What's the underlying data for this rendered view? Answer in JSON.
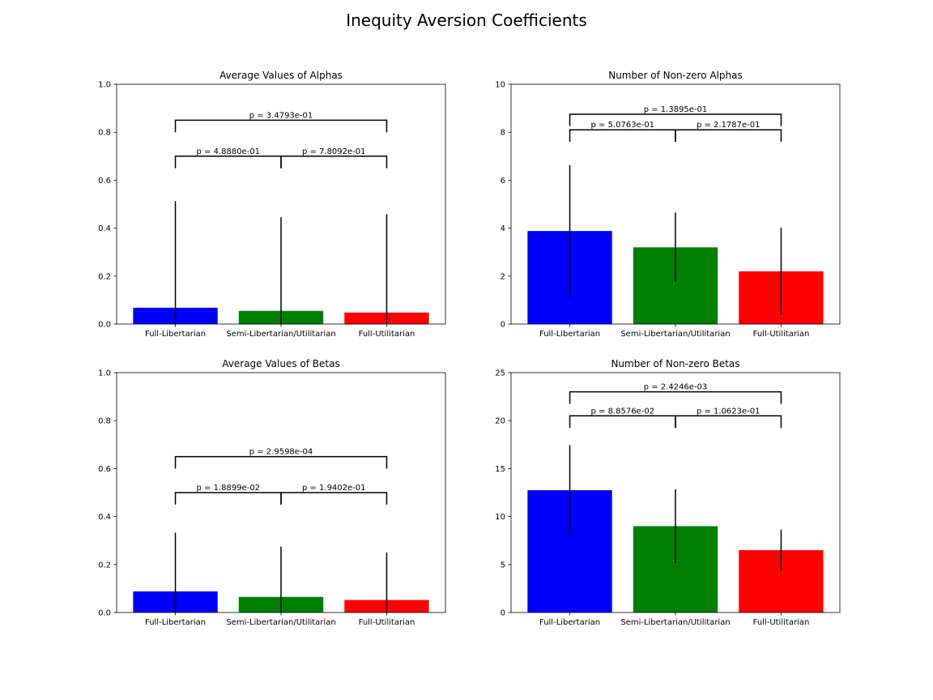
{
  "figure": {
    "title": "Inequity Aversion Coefficients"
  },
  "chart_data": [
    {
      "type": "bar",
      "title": "Average Values of Alphas",
      "xlabel": "",
      "ylabel": "",
      "categories": [
        "Full-Libertarian",
        "Semi-Libertarian/Utilitarian",
        "Full-Utilitarian"
      ],
      "values": [
        0.068,
        0.055,
        0.048
      ],
      "error": [
        0.445,
        0.39,
        0.41
      ],
      "colors": [
        "#0000ff",
        "#008000",
        "#ff0000"
      ],
      "ylim": [
        0,
        1.0
      ],
      "yticks": [
        0.0,
        0.2,
        0.4,
        0.6,
        0.8,
        1.0
      ],
      "ytick_labels": [
        "0.0",
        "0.2",
        "0.4",
        "0.6",
        "0.8",
        "1.0"
      ],
      "brackets": [
        {
          "from": 0,
          "to": 1,
          "y": 0.7,
          "drop": 0.05,
          "label": "p = 4.8880e-01"
        },
        {
          "from": 1,
          "to": 2,
          "y": 0.7,
          "drop": 0.05,
          "label": "p = 7.8092e-01"
        },
        {
          "from": 0,
          "to": 2,
          "y": 0.85,
          "drop": 0.05,
          "label": "p = 3.4793e-01"
        }
      ]
    },
    {
      "type": "bar",
      "title": "Number of Non-zero Alphas",
      "xlabel": "",
      "ylabel": "",
      "categories": [
        "Full-Libertarian",
        "Semi-Libertarian/Utilitarian",
        "Full-Utilitarian"
      ],
      "values": [
        3.88,
        3.2,
        2.2
      ],
      "error": [
        2.75,
        1.45,
        1.82
      ],
      "colors": [
        "#0000ff",
        "#008000",
        "#ff0000"
      ],
      "ylim": [
        0,
        10
      ],
      "yticks": [
        0,
        2,
        4,
        6,
        8,
        10
      ],
      "ytick_labels": [
        "0",
        "2",
        "4",
        "6",
        "8",
        "10"
      ],
      "brackets": [
        {
          "from": 0,
          "to": 1,
          "y": 8.1,
          "drop": 0.05,
          "label": "p = 5.0763e-01"
        },
        {
          "from": 1,
          "to": 2,
          "y": 8.1,
          "drop": 0.05,
          "label": "p = 2.1787e-01"
        },
        {
          "from": 0,
          "to": 2,
          "y": 8.75,
          "drop": 0.05,
          "label": "p = 1.3895e-01"
        }
      ]
    },
    {
      "type": "bar",
      "title": "Average Values of Betas",
      "xlabel": "",
      "ylabel": "",
      "categories": [
        "Full-Libertarian",
        "Semi-Libertarian/Utilitarian",
        "Full-Utilitarian"
      ],
      "values": [
        0.088,
        0.065,
        0.052
      ],
      "error": [
        0.245,
        0.21,
        0.198
      ],
      "colors": [
        "#0000ff",
        "#008000",
        "#ff0000"
      ],
      "ylim": [
        0,
        1.0
      ],
      "yticks": [
        0.0,
        0.2,
        0.4,
        0.6,
        0.8,
        1.0
      ],
      "ytick_labels": [
        "0.0",
        "0.2",
        "0.4",
        "0.6",
        "0.8",
        "1.0"
      ],
      "brackets": [
        {
          "from": 0,
          "to": 1,
          "y": 0.5,
          "drop": 0.05,
          "label": "p = 1.8899e-02"
        },
        {
          "from": 1,
          "to": 2,
          "y": 0.5,
          "drop": 0.05,
          "label": "p = 1.9402e-01"
        },
        {
          "from": 0,
          "to": 2,
          "y": 0.65,
          "drop": 0.05,
          "label": "p = 2.9598e-04"
        }
      ]
    },
    {
      "type": "bar",
      "title": "Number of Non-zero Betas",
      "xlabel": "",
      "ylabel": "",
      "categories": [
        "Full-Libertarian",
        "Semi-Libertarian/Utilitarian",
        "Full-Utilitarian"
      ],
      "values": [
        12.75,
        9.0,
        6.5
      ],
      "error": [
        4.7,
        3.85,
        2.15
      ],
      "colors": [
        "#0000ff",
        "#008000",
        "#ff0000"
      ],
      "ylim": [
        0,
        25
      ],
      "yticks": [
        0,
        5,
        10,
        15,
        20,
        25
      ],
      "ytick_labels": [
        "0",
        "5",
        "10",
        "15",
        "20",
        "25"
      ],
      "brackets": [
        {
          "from": 0,
          "to": 1,
          "y": 20.5,
          "drop": 0.05,
          "label": "p = 8.8576e-02"
        },
        {
          "from": 1,
          "to": 2,
          "y": 20.5,
          "drop": 0.05,
          "label": "p = 1.0623e-01"
        },
        {
          "from": 0,
          "to": 2,
          "y": 23.0,
          "drop": 0.05,
          "label": "p = 2.4246e-03"
        }
      ]
    }
  ]
}
